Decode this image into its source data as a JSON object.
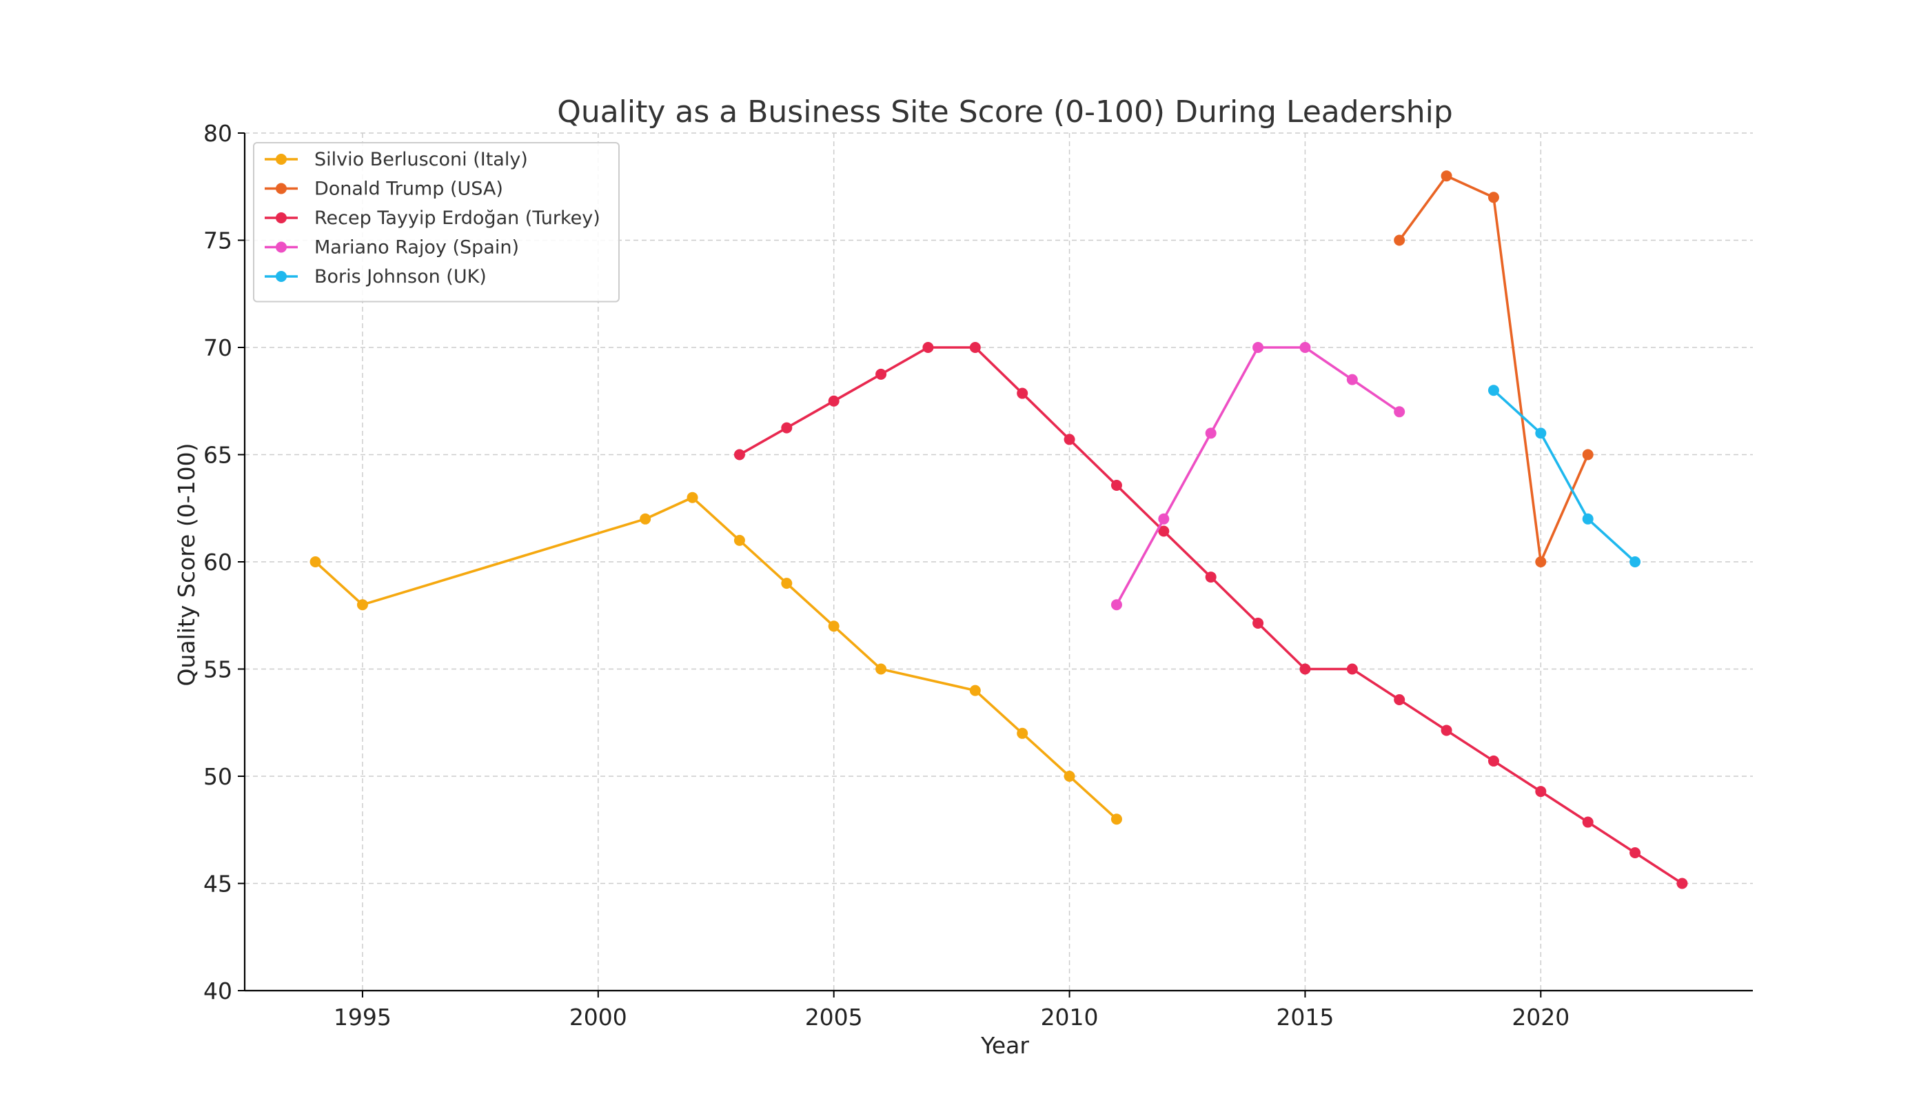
{
  "chart_data": {
    "type": "line",
    "title": "Quality as a Business Site Score (0-100) During Leadership",
    "xlabel": "Year",
    "ylabel": "Quality Score (0-100)",
    "xlim": [
      1992.5,
      2024.5
    ],
    "ylim": [
      40,
      80
    ],
    "xticks": [
      1995,
      2000,
      2005,
      2010,
      2015,
      2020
    ],
    "yticks": [
      40,
      45,
      50,
      55,
      60,
      65,
      70,
      75,
      80
    ],
    "grid": true,
    "legend_position": "top-left",
    "series": [
      {
        "name": "Silvio Berlusconi (Italy)",
        "color": "#F5A80F",
        "x": [
          1994,
          1995,
          2001,
          2002,
          2003,
          2004,
          2005,
          2006,
          2008,
          2009,
          2010,
          2011
        ],
        "y": [
          60,
          58,
          62,
          63,
          61,
          59,
          57,
          55,
          54,
          52,
          50,
          48
        ]
      },
      {
        "name": "Donald Trump (USA)",
        "color": "#E96424",
        "x": [
          2017,
          2018,
          2019,
          2020,
          2021
        ],
        "y": [
          75,
          78,
          77,
          60,
          65
        ]
      },
      {
        "name": "Recep Tayyip Erdoğan (Turkey)",
        "color": "#E8284F",
        "x": [
          2003,
          2004,
          2005,
          2006,
          2007,
          2008,
          2009,
          2010,
          2011,
          2012,
          2013,
          2014,
          2015,
          2016,
          2017,
          2018,
          2019,
          2020,
          2021,
          2022,
          2023
        ],
        "y": [
          65,
          66.25,
          67.5,
          68.75,
          70,
          70,
          67.86,
          65.71,
          63.57,
          61.43,
          59.29,
          57.14,
          55,
          55,
          53.57,
          52.14,
          50.71,
          49.29,
          47.86,
          46.43,
          45
        ]
      },
      {
        "name": "Mariano Rajoy (Spain)",
        "color": "#EE4FC4",
        "x": [
          2011,
          2012,
          2013,
          2014,
          2015,
          2016,
          2017
        ],
        "y": [
          58,
          62,
          66,
          70,
          70,
          68.5,
          67
        ]
      },
      {
        "name": "Boris Johnson (UK)",
        "color": "#1FB8EE",
        "x": [
          2019,
          2020,
          2021,
          2022
        ],
        "y": [
          68,
          66,
          62,
          60
        ]
      }
    ]
  }
}
